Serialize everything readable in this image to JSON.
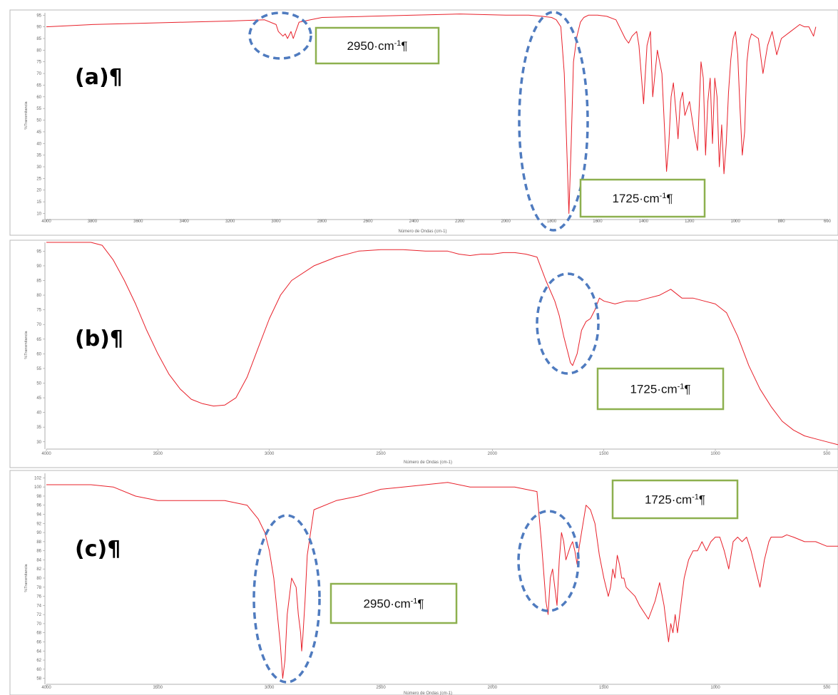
{
  "chart_data": [
    {
      "type": "line",
      "panel_label": "(a)¶",
      "xlabel": "Número de Ondas (cm-1)",
      "ylabel": "%Transmitancia",
      "xlim": [
        4000,
        600
      ],
      "ylim": [
        8,
        96
      ],
      "xticks": [
        4000,
        3800,
        3600,
        3400,
        3200,
        3000,
        2800,
        2600,
        2400,
        2200,
        2000,
        1800,
        1600,
        1400,
        1200,
        1000,
        800,
        600
      ],
      "yticks": [
        10,
        15,
        20,
        25,
        30,
        35,
        40,
        45,
        50,
        55,
        60,
        65,
        70,
        75,
        80,
        85,
        90,
        95
      ],
      "series": [
        {
          "color": "#e8202a",
          "x": [
            4000,
            3800,
            3600,
            3400,
            3200,
            3050,
            3000,
            2990,
            2970,
            2960,
            2950,
            2935,
            2925,
            2900,
            2850,
            2800,
            2600,
            2400,
            2200,
            2000,
            1900,
            1840,
            1800,
            1780,
            1760,
            1745,
            1735,
            1725,
            1715,
            1705,
            1690,
            1675,
            1660,
            1640,
            1600,
            1560,
            1520,
            1480,
            1465,
            1450,
            1430,
            1420,
            1400,
            1385,
            1370,
            1360,
            1340,
            1320,
            1300,
            1290,
            1280,
            1270,
            1260,
            1250,
            1240,
            1230,
            1220,
            1200,
            1180,
            1165,
            1150,
            1140,
            1130,
            1120,
            1110,
            1100,
            1090,
            1080,
            1070,
            1060,
            1050,
            1040,
            1030,
            1020,
            1010,
            1000,
            990,
            980,
            970,
            960,
            950,
            940,
            930,
            900,
            880,
            860,
            840,
            820,
            800,
            760,
            720,
            700,
            680,
            660,
            650
          ],
          "y": [
            90,
            91,
            91.5,
            92,
            92.5,
            93,
            91,
            88,
            86,
            87,
            85,
            88,
            85,
            92,
            93,
            94,
            94.5,
            95,
            95.5,
            95,
            95,
            94.5,
            94,
            93,
            90,
            70,
            40,
            10,
            40,
            75,
            86,
            92,
            94,
            95,
            95,
            94.5,
            93,
            85,
            83,
            86,
            88,
            82,
            57,
            82,
            88,
            60,
            80,
            70,
            28,
            40,
            60,
            66,
            55,
            42,
            58,
            62,
            52,
            58,
            45,
            37,
            75,
            68,
            35,
            58,
            68,
            40,
            68,
            60,
            30,
            48,
            27,
            40,
            62,
            76,
            85,
            88,
            78,
            55,
            35,
            45,
            75,
            84,
            87,
            85,
            70,
            82,
            88,
            78,
            85,
            88,
            91,
            90,
            90,
            86,
            90
          ]
        }
      ],
      "annotations": [
        {
          "text": "2950·cm",
          "sup": "-1",
          "pilcrow": "¶",
          "target_x": 2950
        },
        {
          "text": "1725·cm",
          "sup": "-1",
          "pilcrow": "¶",
          "target_x": 1725
        }
      ],
      "grid": false,
      "legend": "none"
    },
    {
      "type": "line",
      "panel_label": "(b)¶",
      "xlabel": "Número de Ondas (cm-1)",
      "ylabel": "%Transmitancia",
      "xlim": [
        4000,
        450
      ],
      "ylim": [
        28,
        98
      ],
      "xticks": [
        4000,
        3500,
        3000,
        2500,
        2000,
        1500,
        1000,
        500
      ],
      "yticks": [
        30,
        35,
        40,
        45,
        50,
        55,
        60,
        65,
        70,
        75,
        80,
        85,
        90,
        95
      ],
      "series": [
        {
          "color": "#e8202a",
          "x": [
            4000,
            3800,
            3750,
            3700,
            3650,
            3600,
            3550,
            3500,
            3450,
            3400,
            3350,
            3300,
            3250,
            3200,
            3150,
            3100,
            3050,
            3000,
            2950,
            2900,
            2800,
            2700,
            2600,
            2500,
            2400,
            2300,
            2200,
            2150,
            2100,
            2050,
            2000,
            1950,
            1900,
            1850,
            1800,
            1760,
            1720,
            1700,
            1680,
            1660,
            1650,
            1640,
            1620,
            1600,
            1580,
            1560,
            1540,
            1520,
            1500,
            1450,
            1400,
            1350,
            1300,
            1250,
            1200,
            1150,
            1100,
            1050,
            1000,
            950,
            900,
            850,
            800,
            750,
            700,
            650,
            600,
            550,
            500,
            450
          ],
          "y": [
            98,
            98,
            97,
            92,
            85,
            77,
            68,
            60,
            53,
            48,
            44.5,
            43,
            42.2,
            42.5,
            45,
            52,
            62,
            72,
            80,
            85,
            90,
            93,
            95,
            95.5,
            95.5,
            95,
            95,
            94,
            93.5,
            94,
            94,
            94.5,
            94.5,
            94,
            93,
            85,
            78,
            73,
            66,
            60,
            57,
            56,
            60,
            68,
            71,
            72,
            75,
            79,
            78,
            77,
            78,
            78,
            79,
            80,
            82,
            79,
            79,
            78,
            77,
            74,
            66,
            56,
            48,
            42,
            37,
            34,
            32,
            31,
            30,
            29
          ]
        }
      ],
      "annotations": [
        {
          "text": "1725·cm",
          "sup": "-1",
          "pilcrow": "¶",
          "target_x": 1650
        }
      ],
      "grid": false,
      "legend": "none"
    },
    {
      "type": "line",
      "panel_label": "(c)¶",
      "xlabel": "Número de Ondas (cm-1)",
      "ylabel": "%Transmitancia",
      "xlim": [
        4000,
        450
      ],
      "ylim": [
        57,
        103
      ],
      "xticks": [
        4000,
        3500,
        3000,
        2500,
        2000,
        1500,
        1000,
        500
      ],
      "yticks": [
        58,
        60,
        62,
        64,
        66,
        68,
        70,
        72,
        74,
        76,
        78,
        80,
        82,
        84,
        86,
        88,
        90,
        92,
        94,
        96,
        98,
        100,
        102
      ],
      "series": [
        {
          "color": "#e8202a",
          "x": [
            4000,
            3800,
            3700,
            3600,
            3500,
            3400,
            3300,
            3200,
            3100,
            3050,
            3020,
            3000,
            2980,
            2960,
            2950,
            2940,
            2930,
            2920,
            2900,
            2880,
            2870,
            2860,
            2855,
            2850,
            2840,
            2830,
            2800,
            2700,
            2600,
            2500,
            2400,
            2300,
            2200,
            2100,
            2000,
            1900,
            1800,
            1780,
            1760,
            1750,
            1740,
            1730,
            1720,
            1710,
            1700,
            1690,
            1680,
            1670,
            1650,
            1640,
            1630,
            1620,
            1610,
            1600,
            1580,
            1560,
            1540,
            1520,
            1500,
            1480,
            1470,
            1460,
            1450,
            1440,
            1430,
            1420,
            1410,
            1400,
            1380,
            1360,
            1340,
            1300,
            1270,
            1250,
            1230,
            1220,
            1210,
            1200,
            1190,
            1180,
            1170,
            1160,
            1150,
            1140,
            1120,
            1100,
            1080,
            1060,
            1040,
            1020,
            1000,
            980,
            960,
            940,
            920,
            900,
            880,
            860,
            840,
            820,
            800,
            780,
            760,
            750,
            740,
            720,
            700,
            680,
            650,
            600,
            550,
            500,
            450
          ],
          "y": [
            100.5,
            100.5,
            100,
            98,
            97,
            97,
            97,
            97,
            96,
            93,
            90,
            86,
            80,
            70,
            65,
            58,
            62,
            72,
            80,
            78,
            72,
            68,
            64,
            67,
            75,
            85,
            95,
            97,
            98,
            99.5,
            100,
            100.5,
            101,
            100,
            100,
            100,
            99,
            88,
            75,
            72,
            80,
            82,
            78,
            74,
            84,
            90,
            88,
            84,
            87,
            88,
            86,
            83,
            87,
            90,
            96,
            95,
            92,
            85,
            80,
            76,
            78,
            82,
            80,
            85,
            83,
            80,
            80,
            78,
            77,
            76,
            74,
            71,
            75,
            79,
            74,
            70,
            66,
            70,
            68,
            72,
            68,
            72,
            76,
            80,
            84,
            86,
            86,
            88,
            86,
            88,
            89,
            89,
            86,
            82,
            88,
            89,
            88,
            89,
            86,
            82,
            78,
            84,
            88,
            89,
            89,
            89,
            89,
            89.5,
            89,
            88,
            88,
            87,
            87
          ]
        }
      ],
      "annotations": [
        {
          "text": "2950·cm",
          "sup": "-1",
          "pilcrow": "¶",
          "target_x": 2930
        },
        {
          "text": "1725·cm",
          "sup": "-1",
          "pilcrow": "¶",
          "target_x": 1720
        }
      ],
      "grid": false,
      "legend": "none"
    }
  ],
  "colors": {
    "trace": "#e8202a",
    "ellipse": "#4f7bbf",
    "callout_border": "#8db04f",
    "axis": "#999999",
    "panel_border": "#b8b8b8"
  }
}
